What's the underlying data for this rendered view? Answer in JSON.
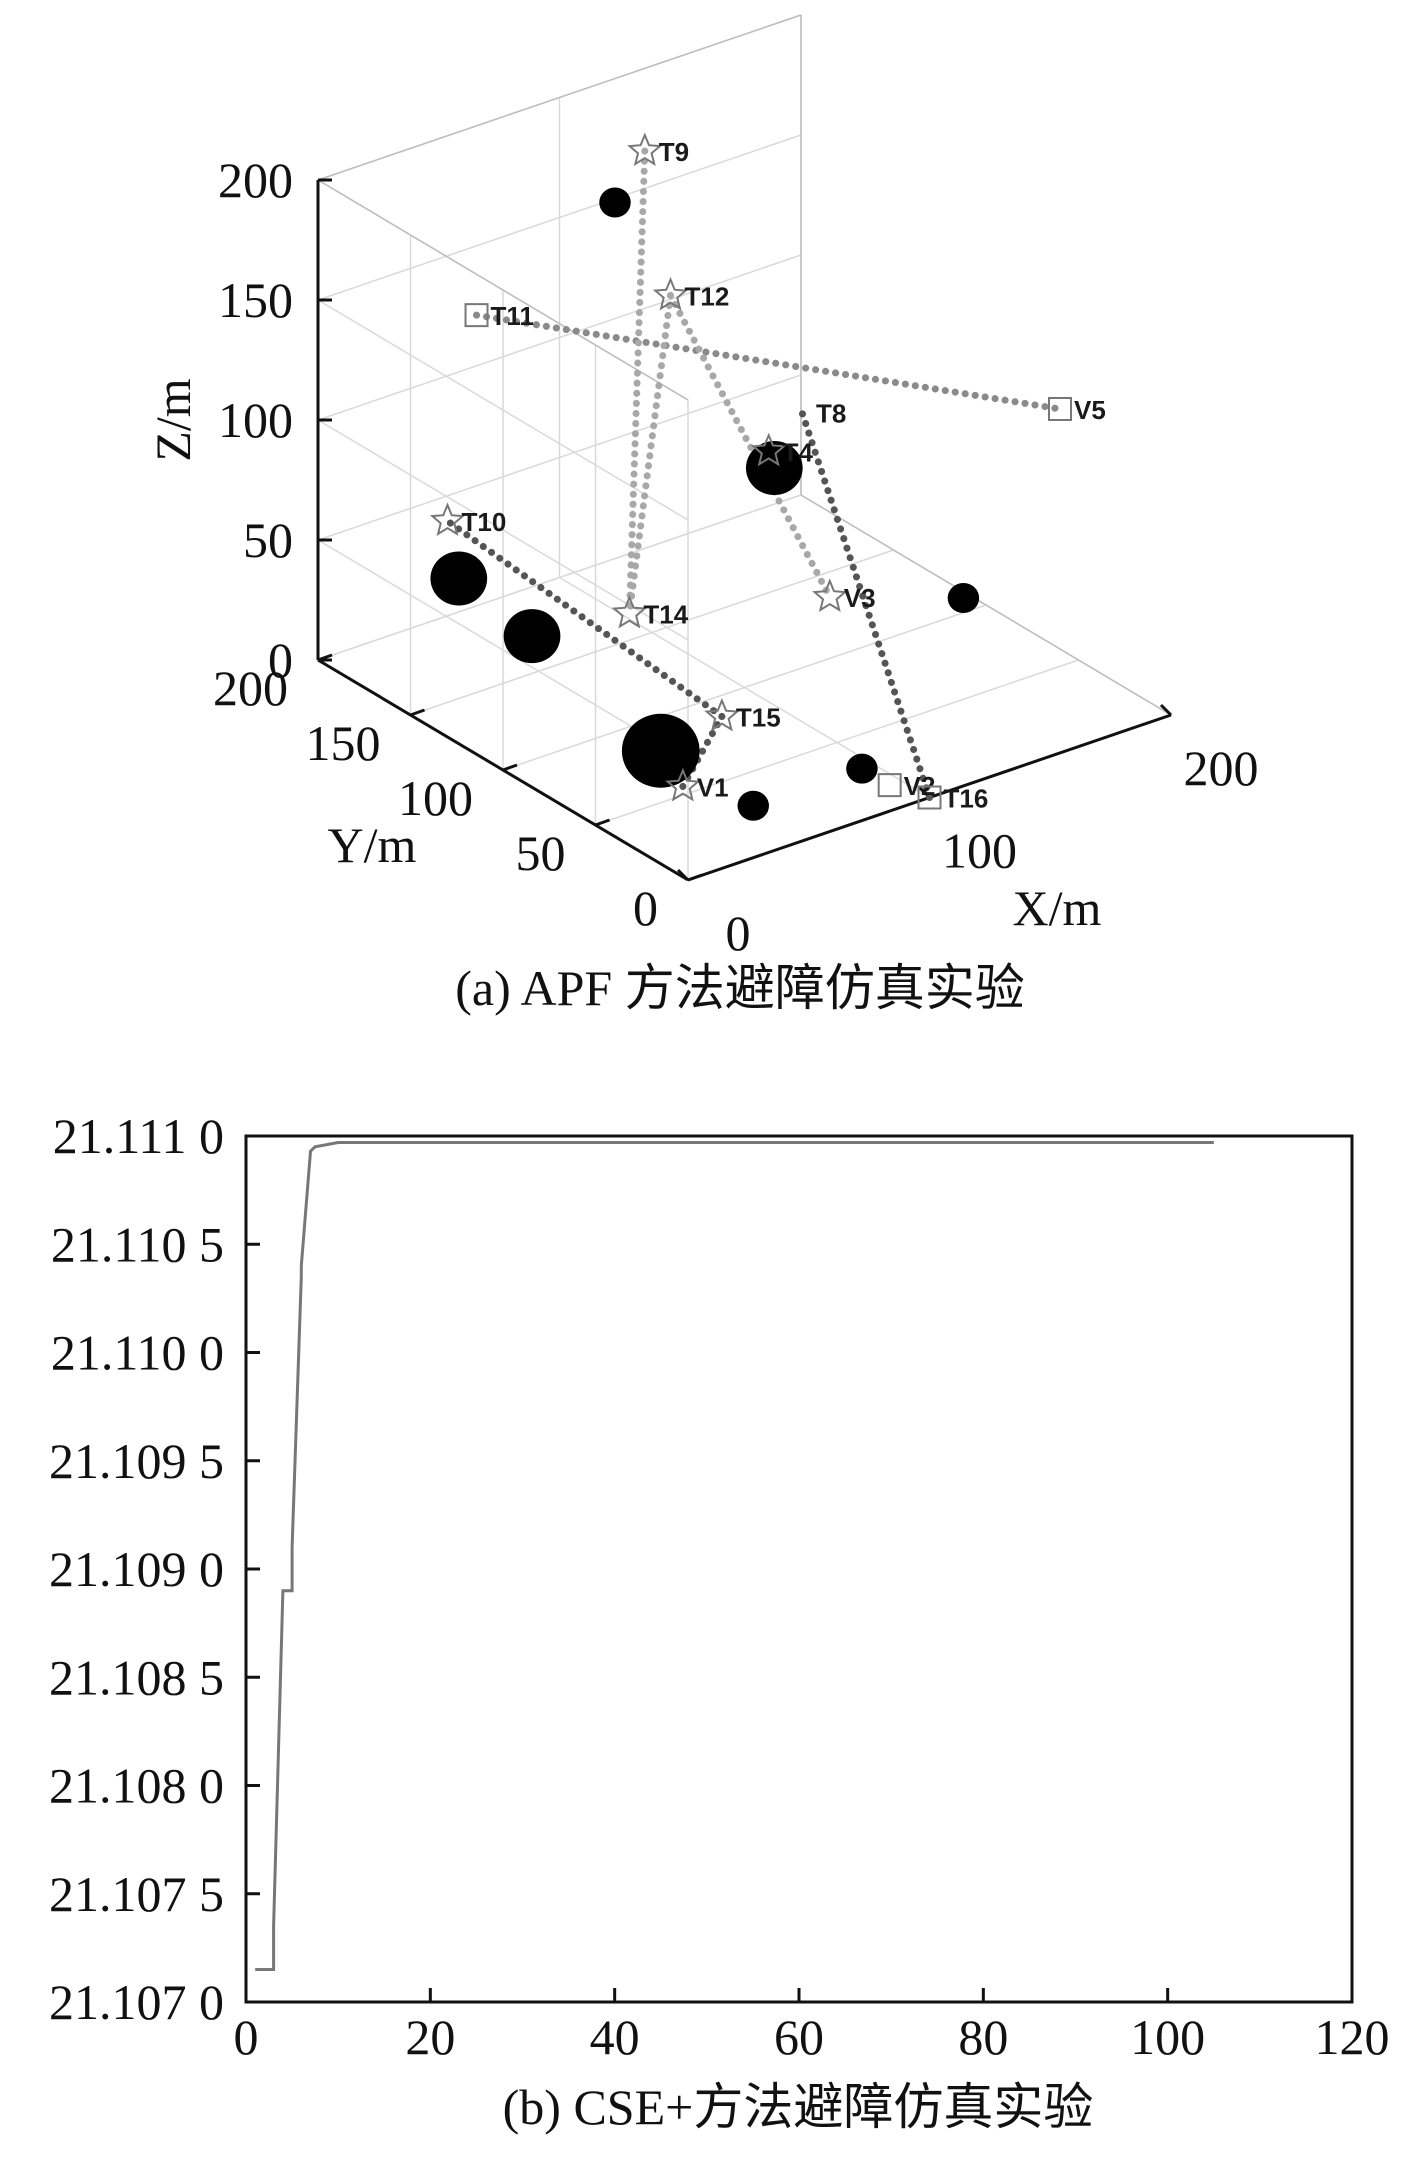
{
  "chart_data": [
    {
      "type": "scatter",
      "projection": "3d",
      "caption": "(a) APF 方法避障仿真实验",
      "xlabel": "X/m",
      "ylabel": "Y/m",
      "zlabel": "Z/m",
      "xlim": [
        0,
        200
      ],
      "ylim": [
        0,
        200
      ],
      "zlim": [
        0,
        200
      ],
      "x_ticks": [
        "0",
        "100",
        "200"
      ],
      "y_ticks": [
        "0",
        "50",
        "100",
        "150",
        "200"
      ],
      "z_ticks": [
        "0",
        "50",
        "100",
        "150",
        "200"
      ],
      "grid": true,
      "start_points": [
        {
          "label": "V1",
          "marker": "star",
          "x": 40,
          "y": 55,
          "z": 0
        },
        {
          "label": "V2",
          "marker": "square",
          "x": 95,
          "y": 15,
          "z": 0
        },
        {
          "label": "V3",
          "marker": "star",
          "x": 120,
          "y": 80,
          "z": 40
        },
        {
          "label": "V5",
          "marker": "square",
          "x": 200,
          "y": 60,
          "z": 100
        }
      ],
      "targets": [
        {
          "label": "T4",
          "marker": "star",
          "x": 110,
          "y": 100,
          "z": 95
        },
        {
          "label": "T8",
          "marker": "none",
          "x": 120,
          "y": 95,
          "z": 110
        },
        {
          "label": "T9",
          "marker": "star",
          "x": 120,
          "y": 180,
          "z": 180
        },
        {
          "label": "T10",
          "marker": "star",
          "x": 0,
          "y": 130,
          "z": 90
        },
        {
          "label": "T11",
          "marker": "square",
          "x": 35,
          "y": 160,
          "z": 150
        },
        {
          "label": "T12",
          "marker": "star",
          "x": 100,
          "y": 140,
          "z": 145
        },
        {
          "label": "T14",
          "marker": "star",
          "x": 60,
          "y": 110,
          "z": 40
        },
        {
          "label": "T15",
          "marker": "star",
          "x": 60,
          "y": 60,
          "z": 20
        },
        {
          "label": "T16",
          "marker": "square",
          "x": 100,
          "y": 0,
          "z": 0
        }
      ],
      "paths": [
        {
          "from": "V1",
          "to": "T15",
          "shade": "dark"
        },
        {
          "from": "T15",
          "to": "T10",
          "shade": "dark"
        },
        {
          "from": "T16",
          "to": "T8",
          "shade": "dark"
        },
        {
          "from": "T11",
          "to": "V5",
          "shade": "medium"
        },
        {
          "from": "T9",
          "to": "T14",
          "shade": "light"
        },
        {
          "from": "T12",
          "to": "T14",
          "shade": "light"
        },
        {
          "from": "T12",
          "to": "V3",
          "shade": "light"
        }
      ],
      "obstacles": [
        {
          "x": 100,
          "y": 170,
          "z": 170,
          "r": "small"
        },
        {
          "x": 20,
          "y": 150,
          "z": 50,
          "r": "medium"
        },
        {
          "x": 35,
          "y": 130,
          "z": 30,
          "r": "medium"
        },
        {
          "x": 50,
          "y": 80,
          "z": 0,
          "r": "large"
        },
        {
          "x": 120,
          "y": 110,
          "z": 80,
          "r": "medium"
        },
        {
          "x": 160,
          "y": 60,
          "z": 35,
          "r": "small"
        },
        {
          "x": 95,
          "y": 30,
          "z": 0,
          "r": "small"
        },
        {
          "x": 50,
          "y": 30,
          "z": 0,
          "r": "small"
        }
      ]
    },
    {
      "type": "line",
      "caption": "(b) CSE+方法避障仿真实验",
      "xlabel": "",
      "ylabel": "",
      "xlim": [
        0,
        120
      ],
      "ylim": [
        21.107,
        21.111
      ],
      "x_ticks": [
        "0",
        "20",
        "40",
        "60",
        "80",
        "100",
        "120"
      ],
      "y_ticks": [
        "21.107 0",
        "21.107 5",
        "21.108 0",
        "21.108 5",
        "21.109 0",
        "21.109 5",
        "21.110 0",
        "21.110 5",
        "21.111 0"
      ],
      "grid": false,
      "series": [
        {
          "color": "#777777",
          "x": [
            1,
            3,
            3,
            4,
            4,
            5,
            5,
            6,
            6,
            7,
            7.5,
            10,
            105
          ],
          "y": [
            21.10715,
            21.10715,
            21.10735,
            21.1089,
            21.1089,
            21.1089,
            21.1091,
            21.11035,
            21.1104,
            21.11093,
            21.11095,
            21.11097,
            21.11097
          ]
        }
      ]
    }
  ]
}
